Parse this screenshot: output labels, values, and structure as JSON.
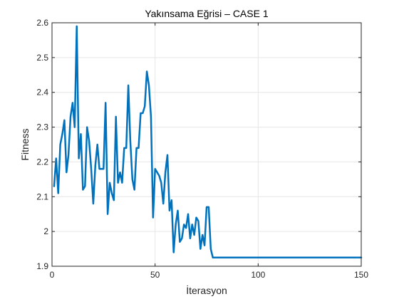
{
  "chart_data": {
    "type": "line",
    "title": "Yakınsama Eğrisi  –  CASE 1",
    "xlabel": "İterasyon",
    "ylabel": "Fitness",
    "xlim": [
      0,
      150
    ],
    "ylim": [
      1.9,
      2.6
    ],
    "xticks": [
      0,
      50,
      100,
      150
    ],
    "yticks": [
      1.9,
      2,
      2.1,
      2.2,
      2.3,
      2.4,
      2.5,
      2.6
    ],
    "grid": true,
    "series": [
      {
        "color": "#0072bd",
        "x": [
          1,
          2,
          3,
          4,
          5,
          6,
          7,
          8,
          9,
          10,
          11,
          12,
          13,
          14,
          15,
          16,
          17,
          18,
          19,
          20,
          21,
          22,
          23,
          24,
          25,
          26,
          27,
          28,
          29,
          30,
          31,
          32,
          33,
          34,
          35,
          36,
          37,
          38,
          39,
          40,
          41,
          42,
          43,
          44,
          45,
          46,
          47,
          48,
          49,
          50,
          51,
          52,
          53,
          54,
          55,
          56,
          57,
          58,
          59,
          60,
          61,
          62,
          63,
          64,
          65,
          66,
          67,
          68,
          69,
          70,
          71,
          72,
          73,
          74,
          75,
          76,
          77,
          78,
          79,
          80,
          90,
          100,
          110,
          120,
          130,
          140,
          150
        ],
        "y": [
          2.13,
          2.21,
          2.11,
          2.25,
          2.28,
          2.32,
          2.17,
          2.22,
          2.33,
          2.37,
          2.3,
          2.59,
          2.21,
          2.28,
          2.12,
          2.13,
          2.3,
          2.26,
          2.18,
          2.08,
          2.19,
          2.25,
          2.18,
          2.18,
          2.18,
          2.37,
          2.05,
          2.14,
          2.11,
          2.09,
          2.33,
          2.14,
          2.17,
          2.14,
          2.24,
          2.24,
          2.42,
          2.26,
          2.15,
          2.12,
          2.24,
          2.24,
          2.34,
          2.34,
          2.36,
          2.46,
          2.42,
          2.33,
          2.04,
          2.18,
          2.17,
          2.16,
          2.14,
          2.08,
          2.17,
          2.22,
          2.06,
          2.09,
          1.94,
          2.02,
          2.06,
          1.97,
          1.98,
          2.02,
          2.01,
          2.05,
          1.98,
          2.02,
          1.99,
          2.04,
          2.03,
          1.95,
          1.99,
          1.96,
          2.07,
          2.07,
          1.95,
          1.925,
          1.925,
          1.925,
          1.925,
          1.925,
          1.925,
          1.925,
          1.925,
          1.925,
          1.925
        ]
      }
    ]
  }
}
